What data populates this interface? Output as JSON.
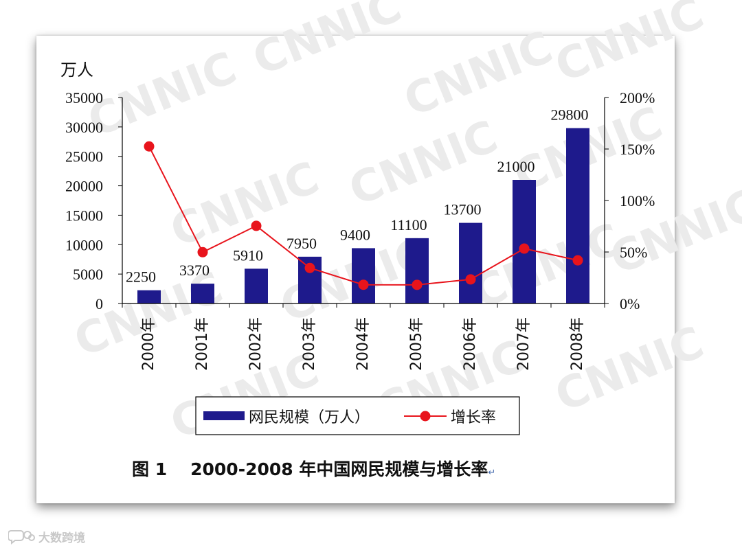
{
  "chart_data": {
    "type": "bar+line",
    "categories": [
      "2000年",
      "2001年",
      "2002年",
      "2003年",
      "2004年",
      "2005年",
      "2006年",
      "2007年",
      "2008年"
    ],
    "series": [
      {
        "name": "网民规模（万人）",
        "type": "bar",
        "axis": "left",
        "color": "#1e1a8c",
        "values": [
          2250,
          3370,
          5910,
          7950,
          9400,
          11100,
          13700,
          21000,
          29800
        ],
        "labels": [
          "2250",
          "3370",
          "5910",
          "7950",
          "9400",
          "11100",
          "13700",
          "21000",
          "29800"
        ]
      },
      {
        "name": "增长率",
        "type": "line",
        "axis": "right",
        "color": "#e8141c",
        "values": [
          152.5,
          49.8,
          75.4,
          34.5,
          18.2,
          18.1,
          23.4,
          53.3,
          41.9
        ]
      }
    ],
    "y_left": {
      "unit_label": "万人",
      "range": [
        0,
        35000
      ],
      "ticks": [
        "0",
        "5000",
        "10000",
        "15000",
        "20000",
        "25000",
        "30000",
        "35000"
      ]
    },
    "y_right": {
      "range": [
        0,
        200
      ],
      "ticks": [
        "0%",
        "50%",
        "100%",
        "150%",
        "200%"
      ]
    },
    "legend_position": "bottom",
    "grid": false
  },
  "caption": {
    "figure_number": "图 1",
    "title": "2000-2008 年中国网民规模与增长率",
    "return_mark": "↵"
  },
  "watermark": {
    "text": "CNNIC",
    "color": "#ebebeb"
  },
  "footer_logo": {
    "text": "大数跨境",
    "color": "#c8c8c8"
  }
}
